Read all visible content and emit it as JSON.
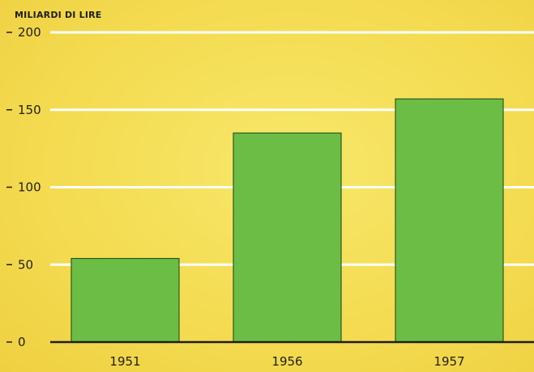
{
  "chart_data": {
    "type": "bar",
    "ylabel": "MILIARDI DI LIRE",
    "categories": [
      "1951",
      "1956",
      "1957"
    ],
    "values": [
      54,
      135,
      157
    ],
    "ylim": [
      0,
      200
    ],
    "yticks": [
      0,
      50,
      100,
      150,
      200
    ],
    "ytick_labels": [
      "0",
      "50",
      "100",
      "150",
      "200"
    ],
    "grid": true,
    "bar_color": "#6cbd45",
    "bar_edge_color": "#2c5a20",
    "gridline_color": "#ffffff",
    "background_color": "#f4dc52"
  }
}
